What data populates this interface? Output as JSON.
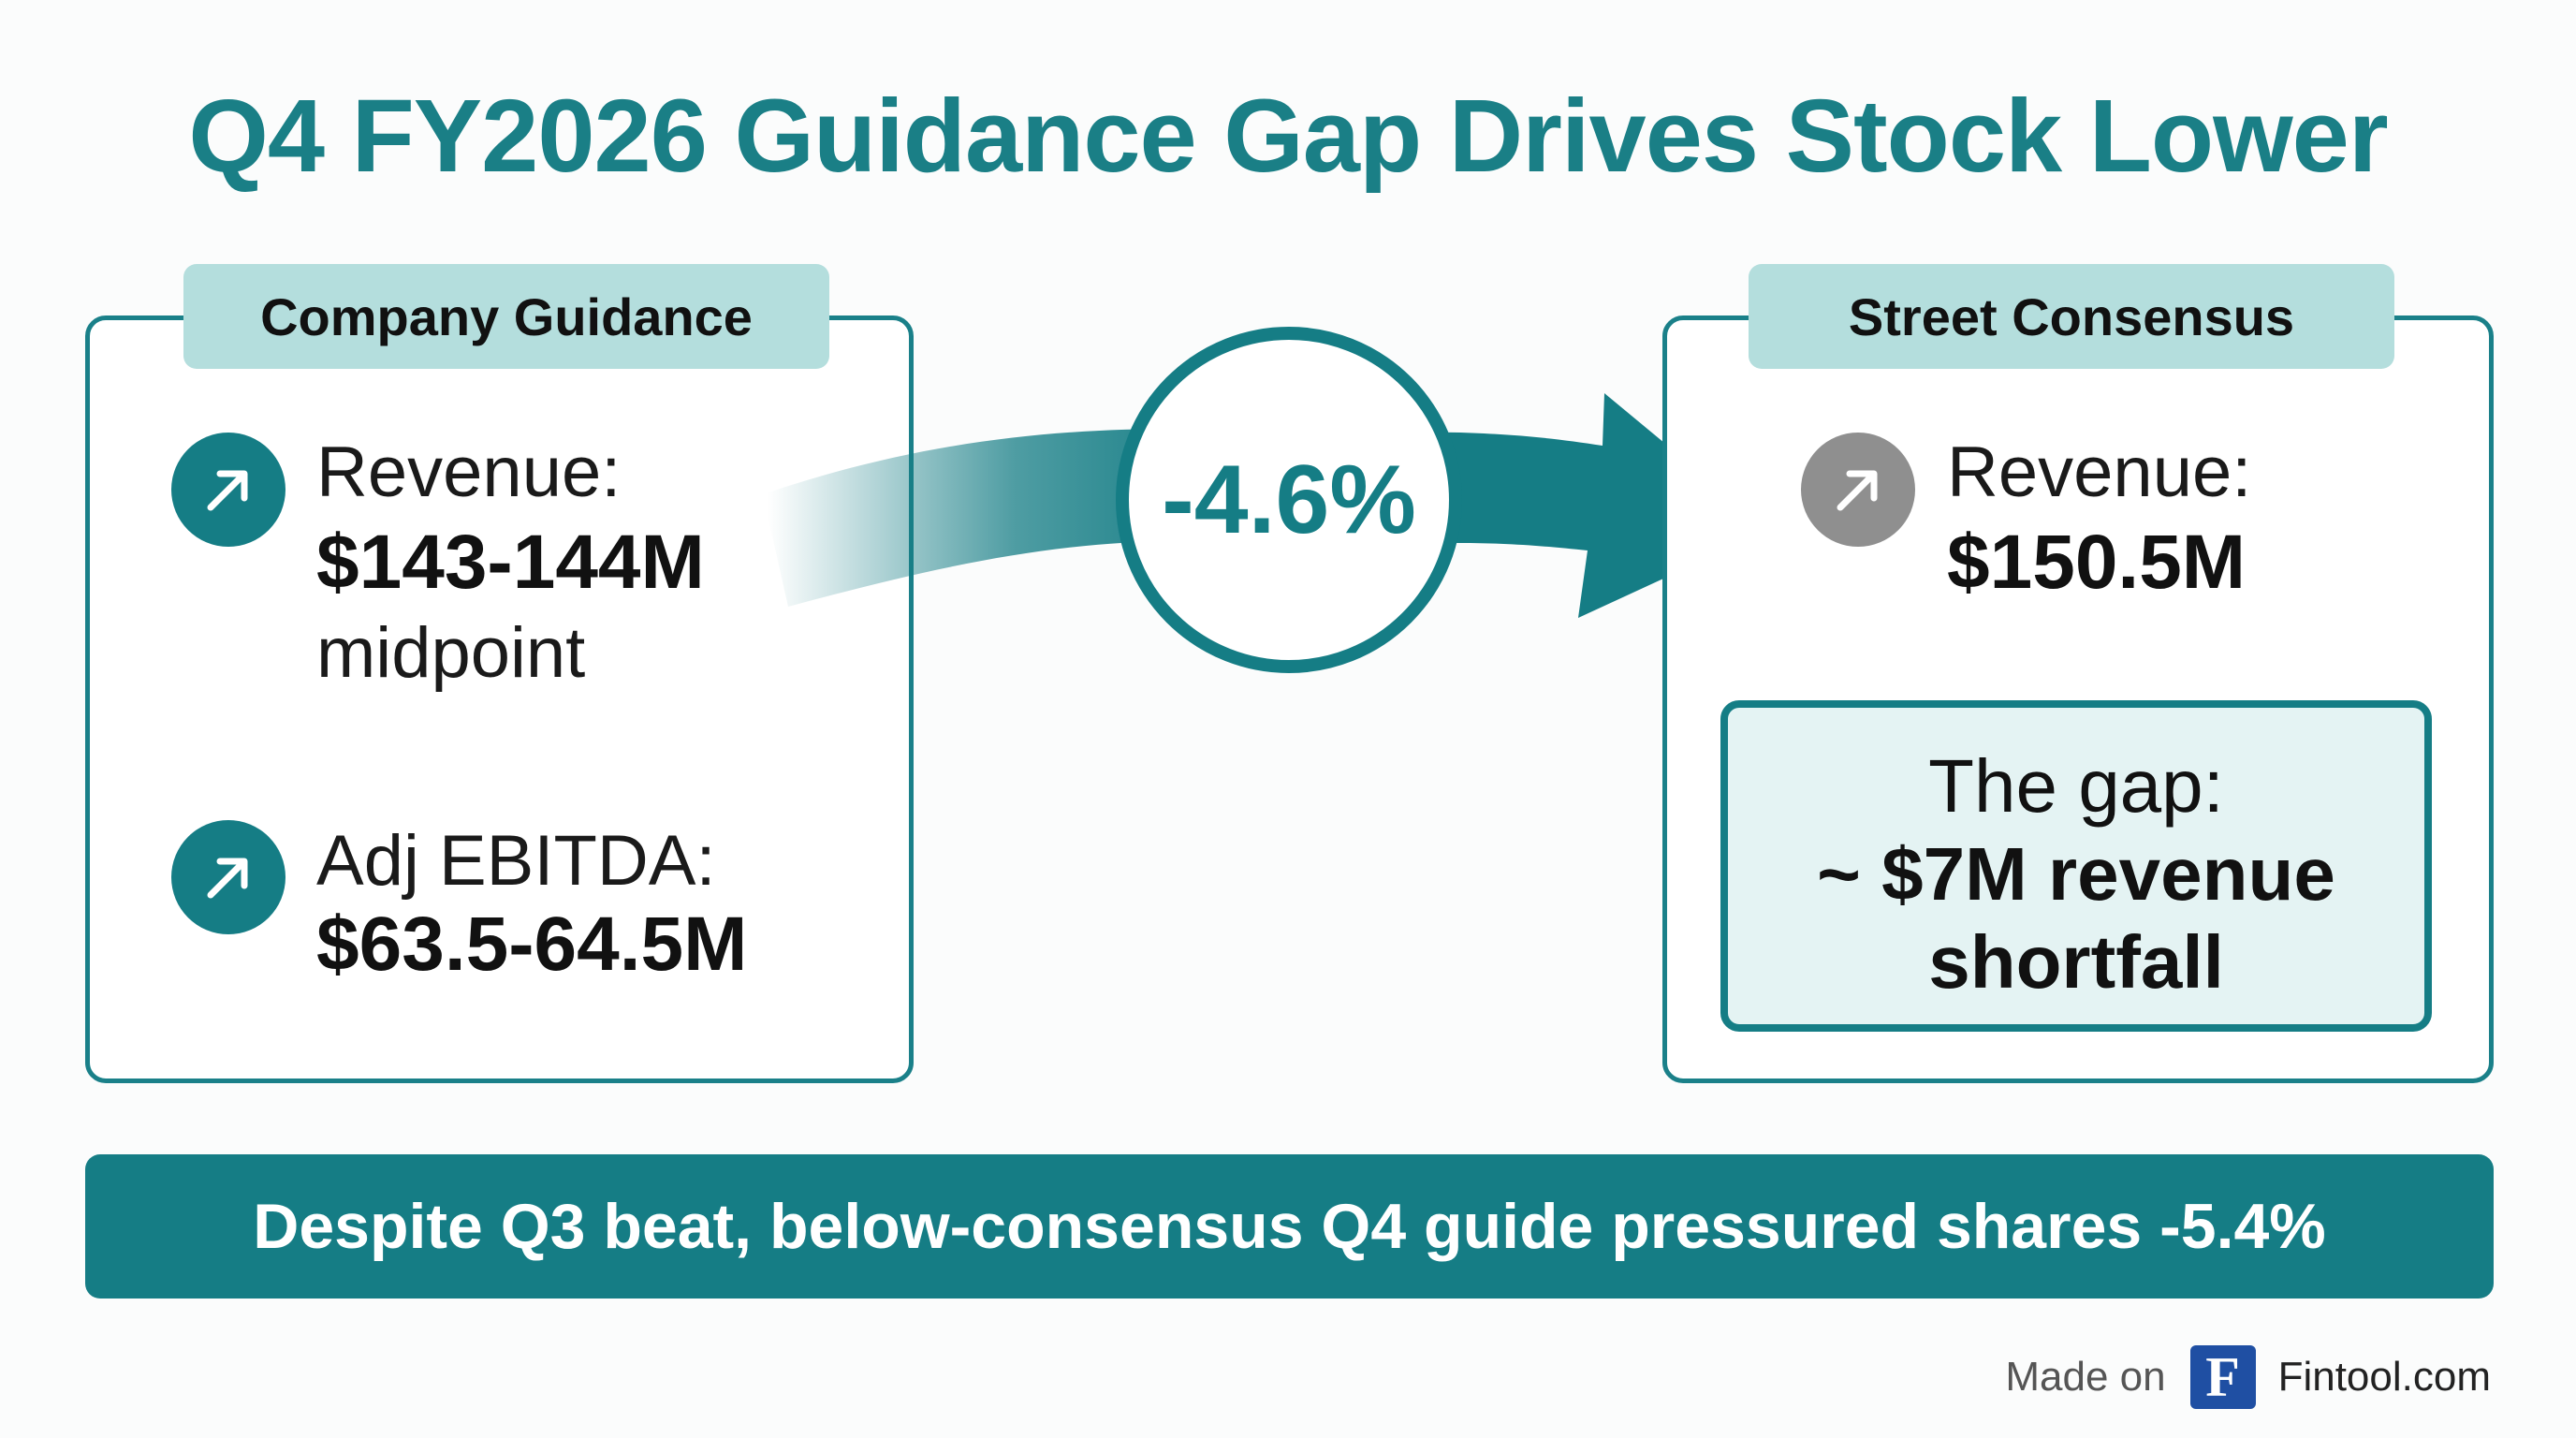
{
  "title": "Q4 FY2026 Guidance Gap Drives Stock Lower",
  "guidance": {
    "label": "Company Guidance",
    "revenue_label": "Revenue:",
    "revenue_value": "$143-144M",
    "revenue_note": "midpoint",
    "ebitda_label": "Adj EBITDA:",
    "ebitda_value": "$63.5-64.5M",
    "icon": "arrow-up-right-icon"
  },
  "change": {
    "value": "-4.6%"
  },
  "consensus": {
    "label": "Street Consensus",
    "revenue_label": "Revenue:",
    "revenue_value": "$150.5M",
    "icon": "arrow-up-right-icon"
  },
  "gap": {
    "title": "The gap:",
    "line1": "~ $7M revenue",
    "line2": "shortfall"
  },
  "banner": "Despite Q3 beat, below-consensus Q4 guide pressured shares -5.4%",
  "footer": {
    "made_on": "Made on",
    "logo_letter": "F",
    "brand": "Fintool.com"
  },
  "colors": {
    "accent": "#157d85",
    "label_bg": "#b4dedd",
    "gap_bg": "#e4f3f3",
    "neutral_icon": "#8f8f8f"
  }
}
